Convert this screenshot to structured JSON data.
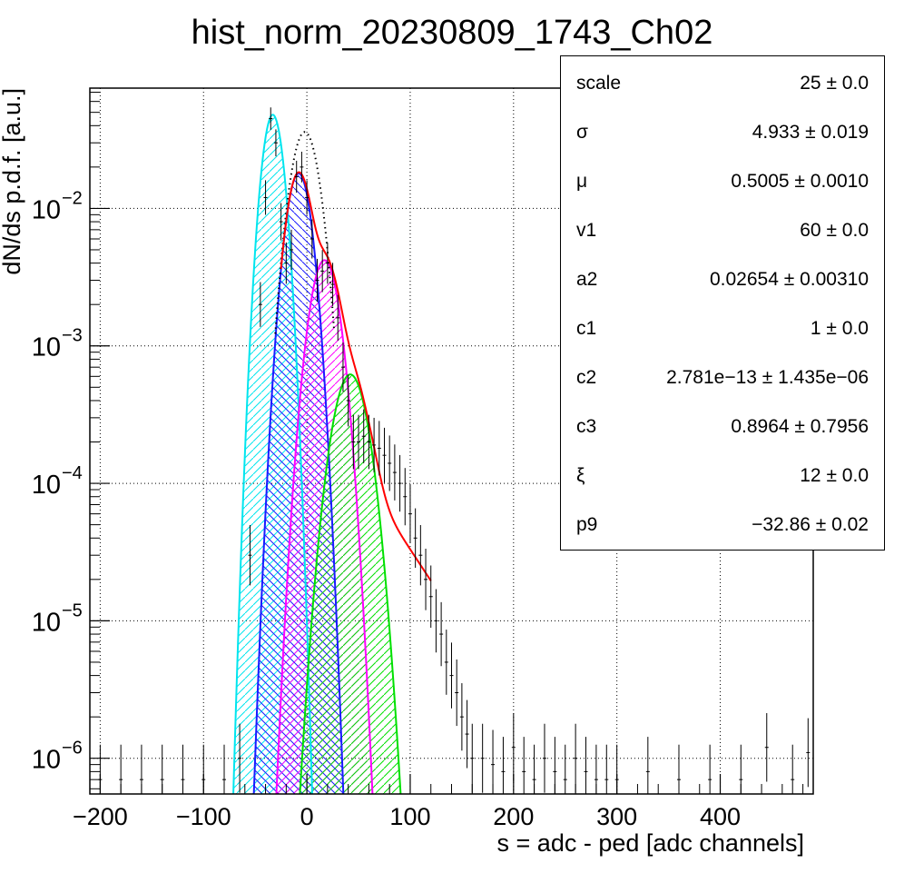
{
  "chart_data": {
    "type": "line",
    "title": "hist_norm_20230809_1743_Ch02",
    "xlabel": "s = adc - ped [adc channels]",
    "ylabel": "dN/ds p.d.f. [a.u.]",
    "xlim": [
      -210,
      490
    ],
    "ylim": [
      5.5e-07,
      0.075
    ],
    "yscale": "log",
    "grid": true,
    "x_ticks": [
      -200,
      -100,
      0,
      100,
      200,
      300,
      400
    ],
    "x_tick_labels": [
      "−200",
      "−100",
      "0",
      "100",
      "200",
      "300",
      "400"
    ],
    "y_ticks": [
      1e-06,
      1e-05,
      0.0001,
      0.001,
      0.01
    ],
    "y_tick_labels": [
      {
        "base": "10",
        "exp": "−6"
      },
      {
        "base": "10",
        "exp": "−5"
      },
      {
        "base": "10",
        "exp": "−4"
      },
      {
        "base": "10",
        "exp": "−3"
      },
      {
        "base": "10",
        "exp": "−2"
      }
    ],
    "components": [
      {
        "color": "#00e5ee",
        "hatch": "right",
        "mu": -33,
        "sigma": 8.0,
        "amp": 0.048
      },
      {
        "color": "#1a1aff",
        "hatch": "left",
        "mu": -8,
        "sigma": 9.5,
        "amp": 0.018
      },
      {
        "color": "#ff00ff",
        "hatch": "right",
        "mu": 17,
        "sigma": 11.0,
        "amp": 0.0042
      },
      {
        "color": "#00e000",
        "hatch": "right",
        "mu": 42,
        "sigma": 13.0,
        "amp": 0.00062
      }
    ],
    "pedestal_dotted": {
      "color": "#000000",
      "mu": -2,
      "sigma": 11.0,
      "amp": 0.036
    },
    "total_fit": {
      "color": "#ff0000",
      "tail_amp": 9e-05,
      "tail_decay": 38
    },
    "data_histogram": {
      "color": "#000000",
      "x": [
        -200,
        -180,
        -160,
        -140,
        -120,
        -100,
        -80,
        -65,
        -55,
        -45,
        -40,
        -35,
        -30,
        -25,
        -20,
        -15,
        -10,
        -5,
        0,
        5,
        10,
        15,
        20,
        25,
        30,
        35,
        40,
        45,
        50,
        55,
        60,
        65,
        70,
        75,
        80,
        85,
        90,
        95,
        100,
        105,
        110,
        115,
        120,
        125,
        130,
        135,
        140,
        145,
        150,
        155,
        160,
        170,
        180,
        190,
        200,
        210,
        220,
        230,
        240,
        250,
        260,
        270,
        280,
        290,
        300,
        330,
        360,
        390,
        420,
        445,
        470,
        485
      ],
      "y": [
        7e-07,
        7e-07,
        7e-07,
        7e-07,
        7e-07,
        7e-07,
        7e-07,
        1e-06,
        3e-05,
        0.002,
        0.012,
        0.045,
        0.03,
        0.008,
        0.004,
        0.005,
        0.017,
        0.02,
        0.012,
        0.006,
        0.003,
        0.0035,
        0.004,
        0.0028,
        0.0016,
        0.0007,
        0.0004,
        0.0002,
        0.0002,
        0.00022,
        0.0002,
        0.00019,
        0.00018,
        0.00016,
        0.00014,
        0.00012,
        0.0001,
        8e-05,
        6e-05,
        4e-05,
        3e-05,
        2e-05,
        1.5e-05,
        1e-05,
        8e-06,
        5e-06,
        4e-06,
        3e-06,
        2e-06,
        1.5e-06,
        1e-06,
        1e-06,
        9e-07,
        8e-07,
        1.2e-06,
        8e-07,
        7e-07,
        1e-06,
        8e-07,
        7e-07,
        1e-06,
        8e-07,
        7e-07,
        7e-07,
        7e-07,
        8e-07,
        7e-07,
        7e-07,
        7e-07,
        1.2e-06,
        7e-07,
        1.1e-06
      ]
    }
  },
  "stats": [
    {
      "name": "scale",
      "value": "25 ± 0.0"
    },
    {
      "name": "σ",
      "value": "4.933 ± 0.019"
    },
    {
      "name": "μ",
      "value": "0.5005 ± 0.0010"
    },
    {
      "name": "v1",
      "value": "60 ± 0.0"
    },
    {
      "name": "a2",
      "value": "0.02654 ± 0.00310"
    },
    {
      "name": "c1",
      "value": "1 ± 0.0"
    },
    {
      "name": "c2",
      "value": "2.781e−13 ± 1.435e−06"
    },
    {
      "name": "c3",
      "value": "0.8964 ± 0.7956"
    },
    {
      "name": "ξ",
      "value": "12 ± 0.0"
    },
    {
      "name": "p9",
      "value": "−32.86 ± 0.02"
    }
  ]
}
